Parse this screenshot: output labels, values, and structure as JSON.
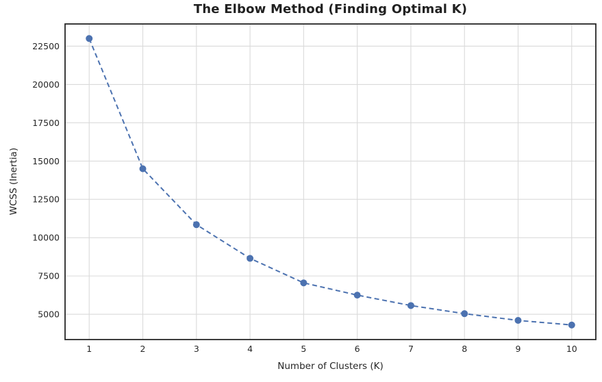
{
  "chart_data": {
    "type": "line",
    "title": "The Elbow Method (Finding Optimal K)",
    "xlabel": "Number of Clusters (K)",
    "ylabel": "WCSS (Inertia)",
    "x": [
      1,
      2,
      3,
      4,
      5,
      6,
      7,
      8,
      9,
      10
    ],
    "series": [
      {
        "name": "WCSS",
        "values": [
          23000,
          14500,
          10850,
          8650,
          7050,
          6250,
          5570,
          5040,
          4600,
          4300
        ]
      }
    ],
    "x_tick_labels": [
      "1",
      "2",
      "3",
      "4",
      "5",
      "6",
      "7",
      "8",
      "9",
      "10"
    ],
    "y_ticks": [
      5000,
      7500,
      10000,
      12500,
      15000,
      17500,
      20000,
      22500
    ],
    "y_tick_labels": [
      "5000",
      "7500",
      "10000",
      "12500",
      "15000",
      "17500",
      "20000",
      "22500"
    ],
    "xlim": [
      0.55,
      10.45
    ],
    "ylim": [
      3350,
      23950
    ],
    "grid": true,
    "legend": "none",
    "line_style": "dashed",
    "marker": "circle",
    "colors": {
      "series": "#4C72B0",
      "grid": "#DADADA",
      "spine": "#262626",
      "text": "#262626",
      "background": "#FFFFFF"
    }
  }
}
